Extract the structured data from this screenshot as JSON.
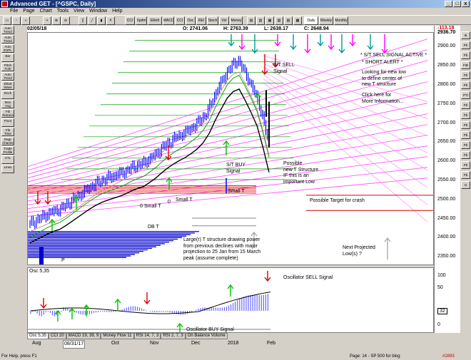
{
  "window": {
    "title": "Advanced GET - [^GSPC, Daily]",
    "btn_min": "_",
    "btn_max": "□",
    "btn_close": "x"
  },
  "menu": [
    "File",
    "Page",
    "Chart",
    "Tools",
    "View",
    "Window",
    "Help"
  ],
  "toolbar": [
    "CCI",
    "Xpdm",
    "Elliott Osc",
    "MACD",
    "CCI",
    "Osc",
    "REI",
    "Stoch",
    "Vol",
    "Money Flow",
    "Daily",
    "Weekly",
    "Monthly"
  ],
  "left_tools": [
    "Auto Trend",
    "Auto Trend",
    "Auto ESPL",
    "Bar",
    "Pitch Fork",
    "Auto Trend",
    "Elliott Wave",
    "Dnch",
    "Mov Avg",
    "Fib Retrace",
    "Pivot",
    "Fib Time",
    "Regr Channel",
    "Trade Profile",
    "XTL",
    "Lines"
  ],
  "right_tools": [
    "⊕",
    "Pb",
    "Pb",
    "FIB EXT",
    "Pb",
    "Pb",
    "PTI",
    "Pb",
    "Pb",
    "Pb",
    "Pb",
    "Pb",
    "Pb",
    "Pb",
    "Pb",
    "G"
  ],
  "price_bar": {
    "date": "02/05/18",
    "open": "O: 2741.06",
    "high": "H: 2763.39",
    "low": "L: 2638.17",
    "close": "C: 2648.94"
  },
  "change_label": "-113.19",
  "y_ticks": [
    "2936.70",
    "2900.00",
    "2850.00",
    "2800.00",
    "2750.00",
    "2700.00",
    "2650.00",
    "2600.00",
    "2550.00",
    "2500.00",
    "2450.00",
    "2400.00",
    "2350.00"
  ],
  "osc_ticks": [
    "100",
    "50",
    "32",
    "0"
  ],
  "osc_label": "Osc 5,35",
  "annotations": {
    "st_sell_active": "* S/T SELL SIGNAL ACTIVE *",
    "short_alert": "* SHORT ALERT *",
    "looking": "Looking for new low\nto define center of\nnew T structure",
    "click": "Click here for\nMore Information...",
    "st_sell": "S/T SELL\nSignal",
    "possible_new_t": "Possible\nnew T Structure\nIF this is an\nimportant Low",
    "st_buy": "S/T BUY\nSignal",
    "small_t_1": "Small T",
    "small_t_2": "Small T",
    "small_t_3": "Small T",
    "db_t": "DB T",
    "zero_1": "0",
    "zero_2": "0",
    "p_label": "P",
    "possible_target": "Possible Target for crash",
    "larger_t": "Large(r) T structure drawing power\nfrom previous declines with major\nprojection to 25 Jan from 15 March\npeak (assume complete)",
    "next_projected": "Next Projected\nLow(s) ?",
    "osc_sell": "Oscillator SELL Signal",
    "osc_buy": "Oscillator BUY Signal"
  },
  "tabs": [
    "Osc 5,35",
    "CCI 20",
    "MACD 19, 39, 9",
    "Money Flow 11",
    "RSI 14, 7, 3",
    "RSI 2, 7, 3",
    "On Balance Volume"
  ],
  "x_labels": [
    "Aug",
    "08/31/17",
    "Oct",
    "Nov",
    "Dec",
    "2018",
    "Feb"
  ],
  "status": {
    "left": "For Help, press F1",
    "right": "Page: 14 - SP 500 for blog",
    "code": "#2893"
  },
  "colors": {
    "bars": "#0000ff",
    "signal_red": "#d00000",
    "signal_green": "#00c000",
    "magenta": "#ff00ff",
    "osc_bars": "#6666ff"
  },
  "chart_data": {
    "type": "bar",
    "title": "^GSPC, Daily",
    "ylim": [
      2330,
      2940
    ],
    "close_series": [
      2440,
      2455,
      2470,
      2480,
      2500,
      2520,
      2540,
      2555,
      2565,
      2575,
      2590,
      2600,
      2620,
      2645,
      2665,
      2680,
      2700,
      2730,
      2790,
      2840,
      2870,
      2820,
      2760,
      2649
    ]
  }
}
